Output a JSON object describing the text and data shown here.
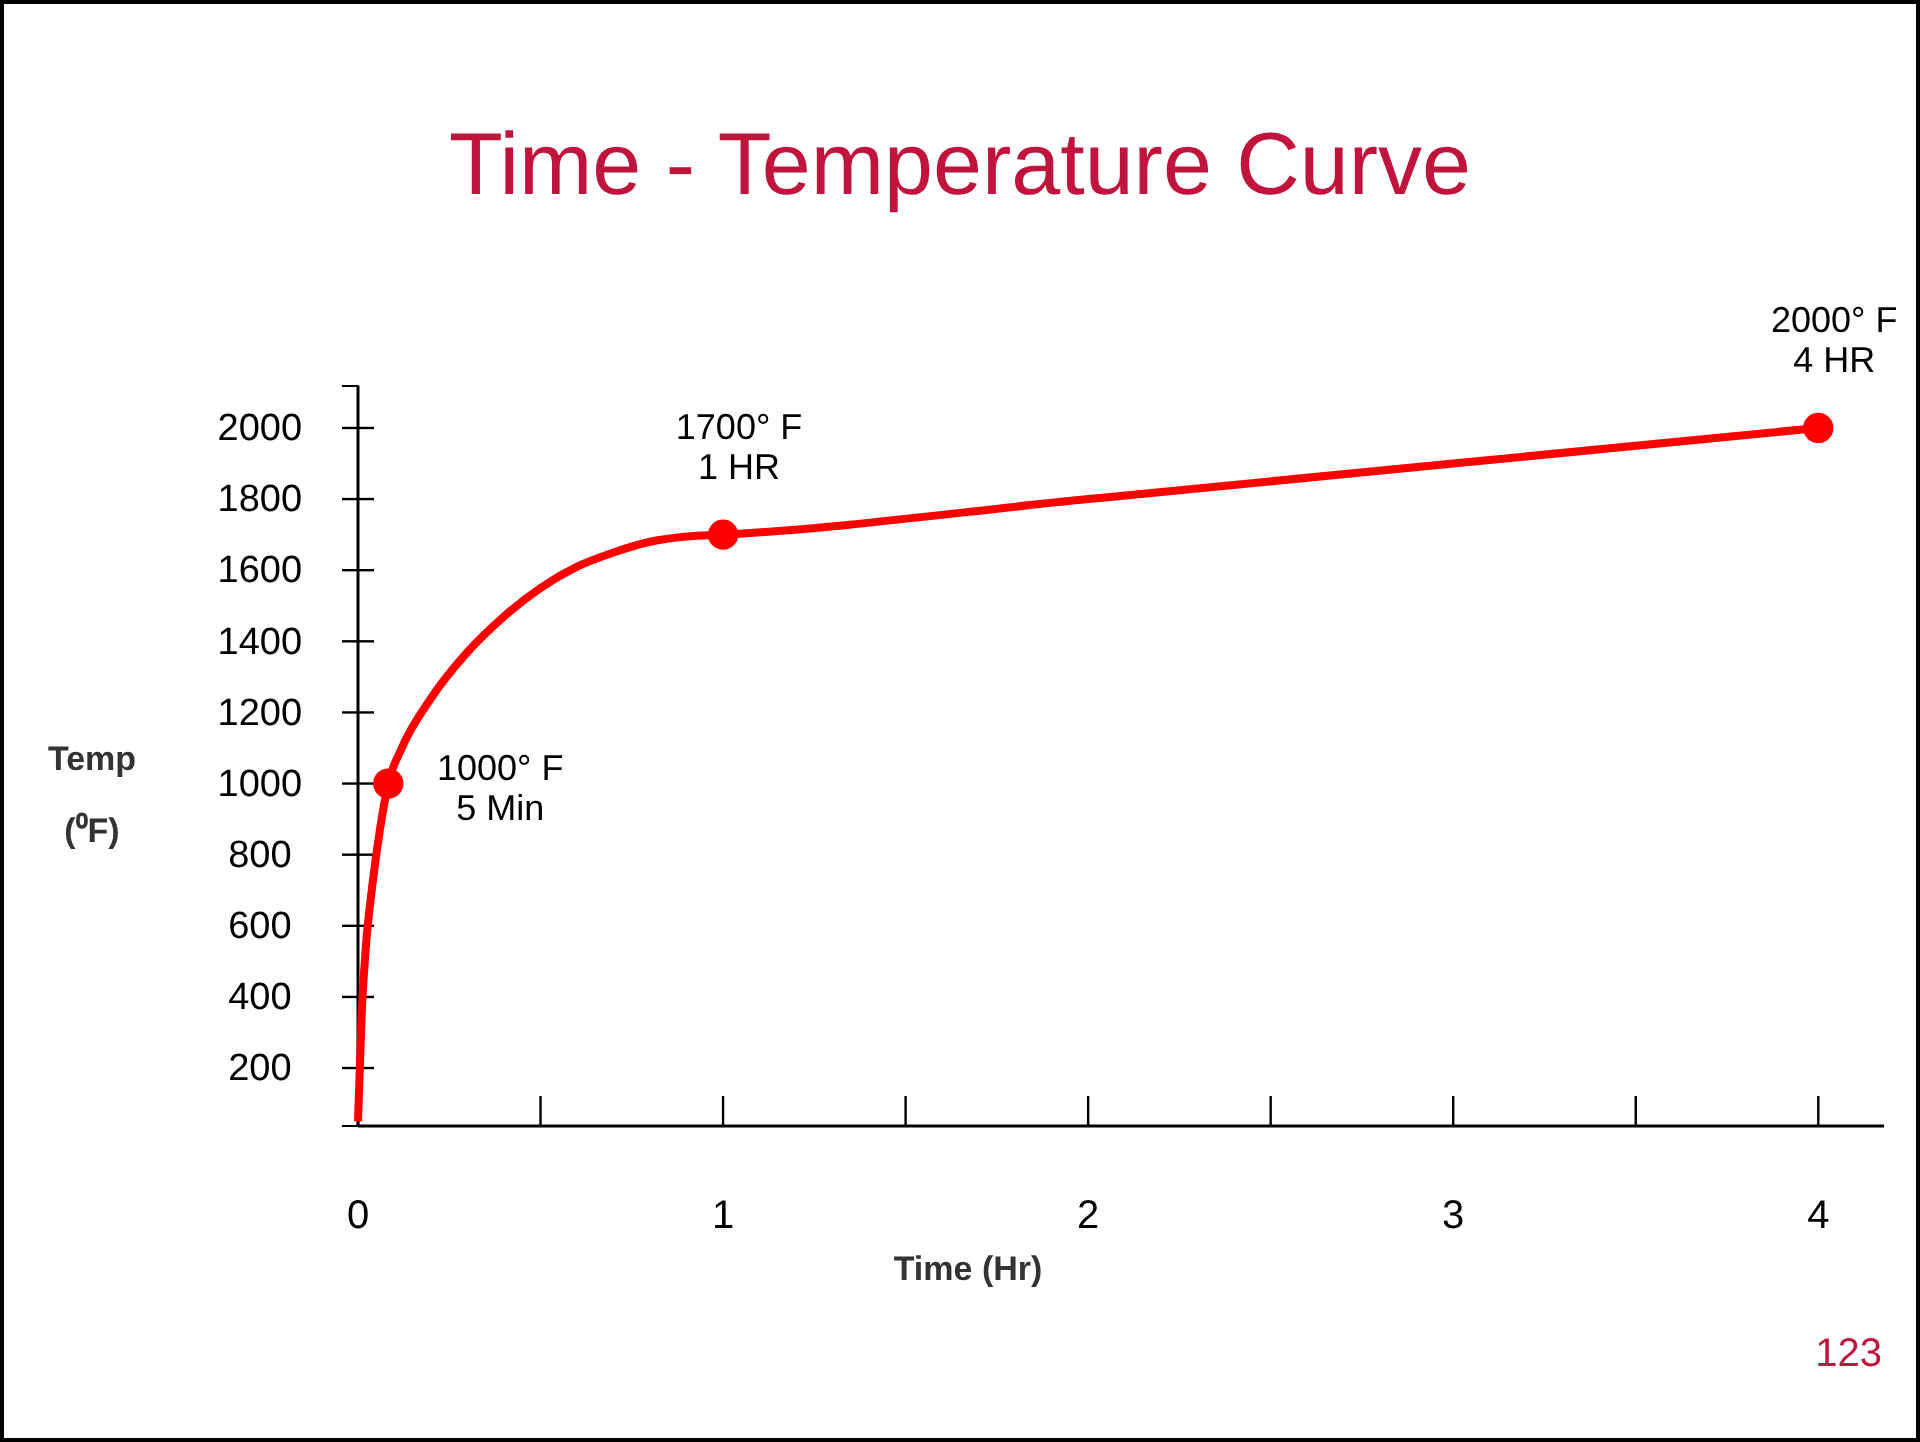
{
  "chart_data": {
    "type": "line",
    "title": "Time - Temperature Curve",
    "xlabel": "Time (Hr)",
    "ylabel": "Temp\n(⁰F)",
    "xlim": [
      0,
      4.18
    ],
    "ylim": [
      37,
      2118
    ],
    "xticks": [
      0,
      {
        "value": 0.5,
        "label": null
      },
      1,
      {
        "value": 1.5,
        "label": null
      },
      2,
      {
        "value": 2.5,
        "label": null
      },
      3,
      {
        "value": 3.5,
        "label": null
      },
      4
    ],
    "yticks": [
      200,
      400,
      600,
      800,
      1000,
      1200,
      1400,
      1600,
      1800,
      2000
    ],
    "grid": false,
    "series": [
      {
        "color": "#ff0000",
        "marker": "none",
        "x": [
          0,
          0.01,
          0.02,
          0.04,
          0.06,
          0.083,
          0.12,
          0.2,
          0.3,
          0.4,
          0.5,
          0.6,
          0.7,
          0.8,
          0.9,
          1,
          2,
          3,
          4
        ],
        "values": [
          50,
          350,
          520,
          720,
          870,
          1000,
          1100,
          1240,
          1370,
          1470,
          1550,
          1610,
          1650,
          1680,
          1695,
          1700,
          1800,
          1900,
          2000
        ]
      },
      {
        "type": "scatter",
        "color": "#ff0000",
        "marker": "circle",
        "x": [
          0.083,
          1,
          4
        ],
        "values": [
          1000,
          1700,
          2000
        ]
      }
    ],
    "annotations": [
      {
        "text": "1000° F\n5 Min",
        "x": 0.083,
        "y": 1000
      },
      {
        "text": "1700° F\n1 HR",
        "x": 1,
        "y": 1700
      },
      {
        "text": "2000° F\n4 HR",
        "x": 4,
        "y": 2000
      },
      "123"
    ]
  }
}
